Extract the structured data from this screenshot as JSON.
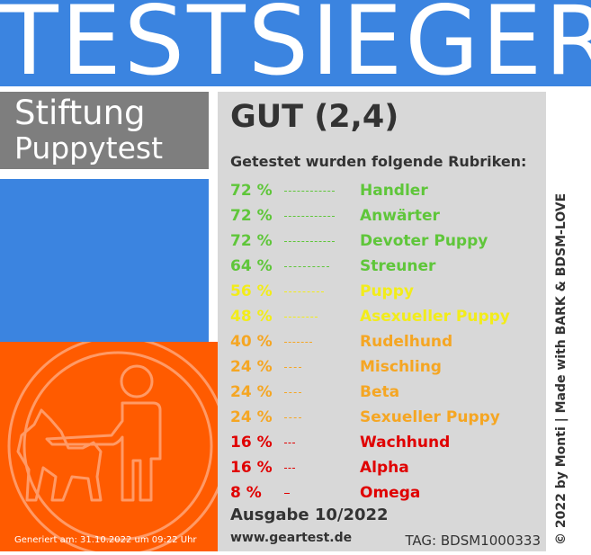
{
  "banner": {
    "title": "TESTSIEGER"
  },
  "brand": {
    "line1": "Stiftung",
    "line2": "Puppytest"
  },
  "result": {
    "grade": "GUT (2,4)",
    "intro": "Getestet wurden folgende Rubriken:"
  },
  "rubrics": [
    {
      "percent": "72 %",
      "value": 72,
      "name": "Handler",
      "color": "#5fc63a"
    },
    {
      "percent": "72 %",
      "value": 72,
      "name": "Anwärter",
      "color": "#5fc63a"
    },
    {
      "percent": "72 %",
      "value": 72,
      "name": "Devoter Puppy",
      "color": "#5fc63a"
    },
    {
      "percent": "64 %",
      "value": 64,
      "name": "Streuner",
      "color": "#5fc63a"
    },
    {
      "percent": "56 %",
      "value": 56,
      "name": "Puppy",
      "color": "#f2ec1a"
    },
    {
      "percent": "48 %",
      "value": 48,
      "name": "Asexueller Puppy",
      "color": "#f2ec1a"
    },
    {
      "percent": "40 %",
      "value": 40,
      "name": "Rudelhund",
      "color": "#f5a623"
    },
    {
      "percent": "24 %",
      "value": 24,
      "name": "Mischling",
      "color": "#f5a623"
    },
    {
      "percent": "24 %",
      "value": 24,
      "name": "Beta",
      "color": "#f5a623"
    },
    {
      "percent": "24 %",
      "value": 24,
      "name": "Sexueller Puppy",
      "color": "#f5a623"
    },
    {
      "percent": "16 %",
      "value": 16,
      "name": "Wachhund",
      "color": "#e00000"
    },
    {
      "percent": "16 %",
      "value": 16,
      "name": "Alpha",
      "color": "#e00000"
    },
    {
      "percent": "8 %",
      "value": 8,
      "name": "Omega",
      "color": "#e00000"
    }
  ],
  "footer": {
    "edition": "Ausgabe 10/2022",
    "website": "www.geartest.de",
    "tag": "TAG: BDSM1000333",
    "generated": "Generiert am: 31.10.2022 um 09:22 Uhr",
    "credit": "© 2022 by Monti | Made with BARK & BDSM-LOVE"
  },
  "colors": {
    "blue": "#3b84e0",
    "gray": "#7e7e7e",
    "orange": "#ff5b00",
    "panel": "#d8d8d8"
  },
  "icons": {
    "emblem": "dog-walker-icon"
  }
}
